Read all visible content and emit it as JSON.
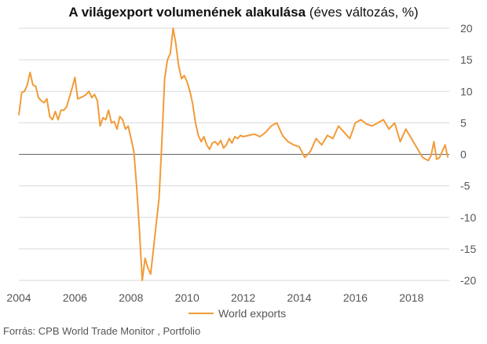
{
  "title": {
    "main": "A világexport volumenének alakulása",
    "suffix": "(éves változás, %)"
  },
  "source": "Forrás: CPB World Trade Monitor , Portfolio",
  "colors": {
    "line": "#F29B38",
    "grid": "#d9d9d9",
    "zero": "#666666",
    "text": "#555555"
  },
  "chart_data": {
    "type": "line",
    "title": "A világexport volumenének alakulása (éves változás, %)",
    "xlabel": "",
    "ylabel": "",
    "xlim": [
      2004.0,
      2019.35
    ],
    "ylim": [
      -20,
      20
    ],
    "yticks": [
      20,
      15,
      10,
      5,
      0,
      -5,
      -10,
      -15,
      -20
    ],
    "xticks": [
      2004,
      2006,
      2008,
      2010,
      2012,
      2014,
      2016,
      2018
    ],
    "legend": {
      "position": "bottom-center"
    },
    "grid": true,
    "series": [
      {
        "name": "World exports",
        "x": [
          2004.0,
          2004.1,
          2004.2,
          2004.3,
          2004.4,
          2004.5,
          2004.6,
          2004.7,
          2004.8,
          2004.9,
          2005.0,
          2005.1,
          2005.2,
          2005.3,
          2005.4,
          2005.5,
          2005.6,
          2005.7,
          2005.8,
          2005.9,
          2006.0,
          2006.1,
          2006.2,
          2006.3,
          2006.4,
          2006.5,
          2006.6,
          2006.7,
          2006.8,
          2006.9,
          2007.0,
          2007.1,
          2007.2,
          2007.3,
          2007.4,
          2007.5,
          2007.6,
          2007.7,
          2007.8,
          2007.9,
          2008.0,
          2008.1,
          2008.2,
          2008.3,
          2008.4,
          2008.5,
          2008.6,
          2008.7,
          2008.8,
          2008.9,
          2009.0,
          2009.1,
          2009.2,
          2009.3,
          2009.4,
          2009.5,
          2009.6,
          2009.7,
          2009.8,
          2009.9,
          2010.0,
          2010.1,
          2010.2,
          2010.3,
          2010.4,
          2010.5,
          2010.6,
          2010.7,
          2010.8,
          2010.9,
          2011.0,
          2011.1,
          2011.2,
          2011.3,
          2011.4,
          2011.5,
          2011.6,
          2011.7,
          2011.8,
          2011.9,
          2012.0,
          2012.2,
          2012.4,
          2012.6,
          2012.8,
          2013.0,
          2013.2,
          2013.4,
          2013.6,
          2013.8,
          2014.0,
          2014.2,
          2014.4,
          2014.6,
          2014.8,
          2015.0,
          2015.2,
          2015.4,
          2015.6,
          2015.8,
          2016.0,
          2016.2,
          2016.4,
          2016.6,
          2016.8,
          2017.0,
          2017.2,
          2017.4,
          2017.6,
          2017.8,
          2018.0,
          2018.2,
          2018.4,
          2018.6,
          2018.7,
          2018.8,
          2018.9,
          2019.0,
          2019.1,
          2019.2,
          2019.3
        ],
        "y": [
          6.2,
          9.8,
          10.0,
          11.0,
          13.0,
          11.0,
          10.8,
          9.0,
          8.5,
          8.2,
          8.8,
          6.0,
          5.5,
          6.8,
          5.5,
          7.0,
          7.0,
          7.5,
          9.0,
          10.5,
          12.2,
          8.8,
          9.0,
          9.2,
          9.5,
          10.0,
          9.0,
          9.5,
          8.5,
          4.5,
          5.8,
          5.5,
          7.0,
          5.0,
          5.2,
          4.0,
          6.0,
          5.5,
          4.0,
          4.5,
          2.5,
          0.5,
          -5.0,
          -12.0,
          -20.0,
          -16.5,
          -18.0,
          -19.0,
          -15.0,
          -11.0,
          -7.0,
          2.0,
          12.0,
          15.0,
          16.0,
          20.0,
          17.5,
          14.0,
          12.0,
          12.5,
          11.5,
          10.0,
          8.0,
          5.0,
          3.0,
          2.0,
          2.8,
          1.5,
          0.8,
          1.8,
          2.0,
          1.5,
          2.2,
          1.0,
          1.5,
          2.5,
          1.8,
          2.8,
          2.5,
          3.0,
          2.8,
          3.0,
          3.2,
          2.8,
          3.5,
          4.5,
          5.0,
          3.0,
          2.0,
          1.5,
          1.2,
          -0.5,
          0.5,
          2.5,
          1.5,
          3.0,
          2.5,
          4.5,
          3.5,
          2.5,
          5.0,
          5.5,
          4.8,
          4.5,
          5.0,
          5.5,
          4.0,
          5.0,
          2.0,
          4.0,
          2.5,
          1.0,
          -0.5,
          -1.0,
          -0.2,
          2.0,
          -0.8,
          -0.5,
          0.5,
          1.5,
          -0.5
        ],
        "y_note": ""
      }
    ]
  }
}
